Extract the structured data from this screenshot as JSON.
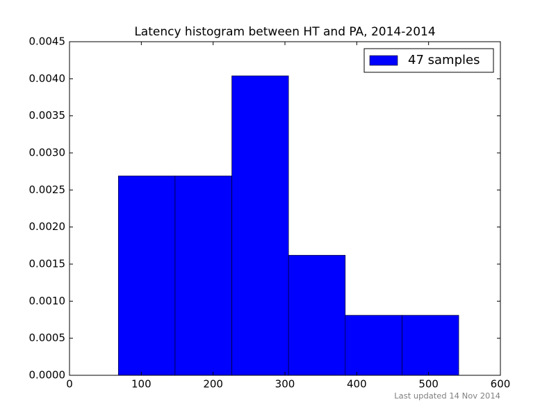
{
  "chart_data": {
    "type": "histogram",
    "title": "Latency histogram between HT and PA, 2014-2014",
    "bins": [
      68,
      147,
      226,
      305,
      384,
      463,
      542
    ],
    "series": [
      {
        "name": "47 samples",
        "color": "#0000ff",
        "values": [
          0.00269,
          0.00269,
          0.00404,
          0.00162,
          0.00081,
          0.00081
        ]
      }
    ],
    "xlim": [
      0,
      600
    ],
    "ylim": [
      0,
      0.0045
    ],
    "xticks": [
      0,
      100,
      200,
      300,
      400,
      500,
      600
    ],
    "yticks": [
      {
        "value": 0,
        "label": "0.0000"
      },
      {
        "value": 0.0005,
        "label": "0.0005"
      },
      {
        "value": 0.001,
        "label": "0.0010"
      },
      {
        "value": 0.0015,
        "label": "0.0015"
      },
      {
        "value": 0.002,
        "label": "0.0020"
      },
      {
        "value": 0.0025,
        "label": "0.0025"
      },
      {
        "value": 0.003,
        "label": "0.0030"
      },
      {
        "value": 0.0035,
        "label": "0.0035"
      },
      {
        "value": 0.004,
        "label": "0.0040"
      },
      {
        "value": 0.0045,
        "label": "0.0045"
      }
    ],
    "legend": "upper right",
    "footer": "Last updated 14 Nov 2014"
  }
}
